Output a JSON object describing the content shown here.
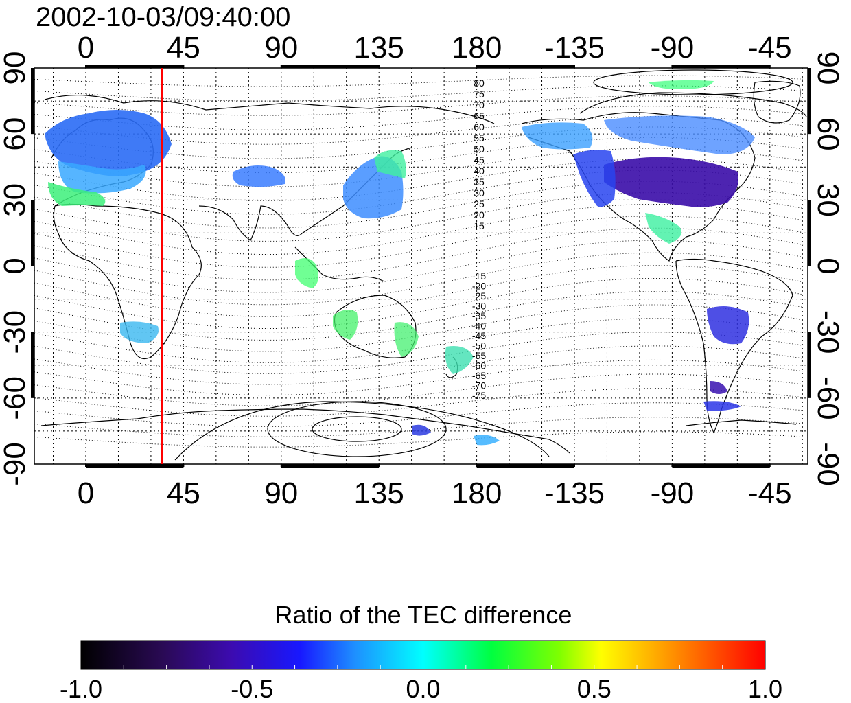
{
  "title": "2002-10-03/09:40:00",
  "colorbar": {
    "label": "Ratio of the TEC difference",
    "min": -1.0,
    "max": 1.0,
    "tick_labels": [
      "-1.0",
      "-0.5",
      "0.0",
      "0.5",
      "1.0"
    ],
    "colors": [
      "#000000",
      "#3a0a6e",
      "#1a1aff",
      "#1e90ff",
      "#00ffff",
      "#00ff40",
      "#80ff00",
      "#ffff00",
      "#ff8000",
      "#ff0000"
    ]
  },
  "map": {
    "lon_ticks": [
      "0",
      "45",
      "90",
      "135",
      "180",
      "-135",
      "-90",
      "-45"
    ],
    "lat_ticks": [
      "90",
      "60",
      "30",
      "0",
      "-30",
      "-60",
      "-90"
    ],
    "marker_line_color": "#ff0000",
    "marker_longitude": 35,
    "north_contour_labels": [
      "80",
      "75",
      "70",
      "65",
      "60",
      "55",
      "50",
      "45",
      "40",
      "35",
      "30",
      "25",
      "20",
      "15"
    ],
    "south_contour_labels": [
      "-15",
      "-20",
      "-25",
      "-30",
      "-35",
      "-40",
      "-45",
      "-50",
      "-55",
      "-60",
      "-65",
      "-70",
      "-75"
    ]
  }
}
